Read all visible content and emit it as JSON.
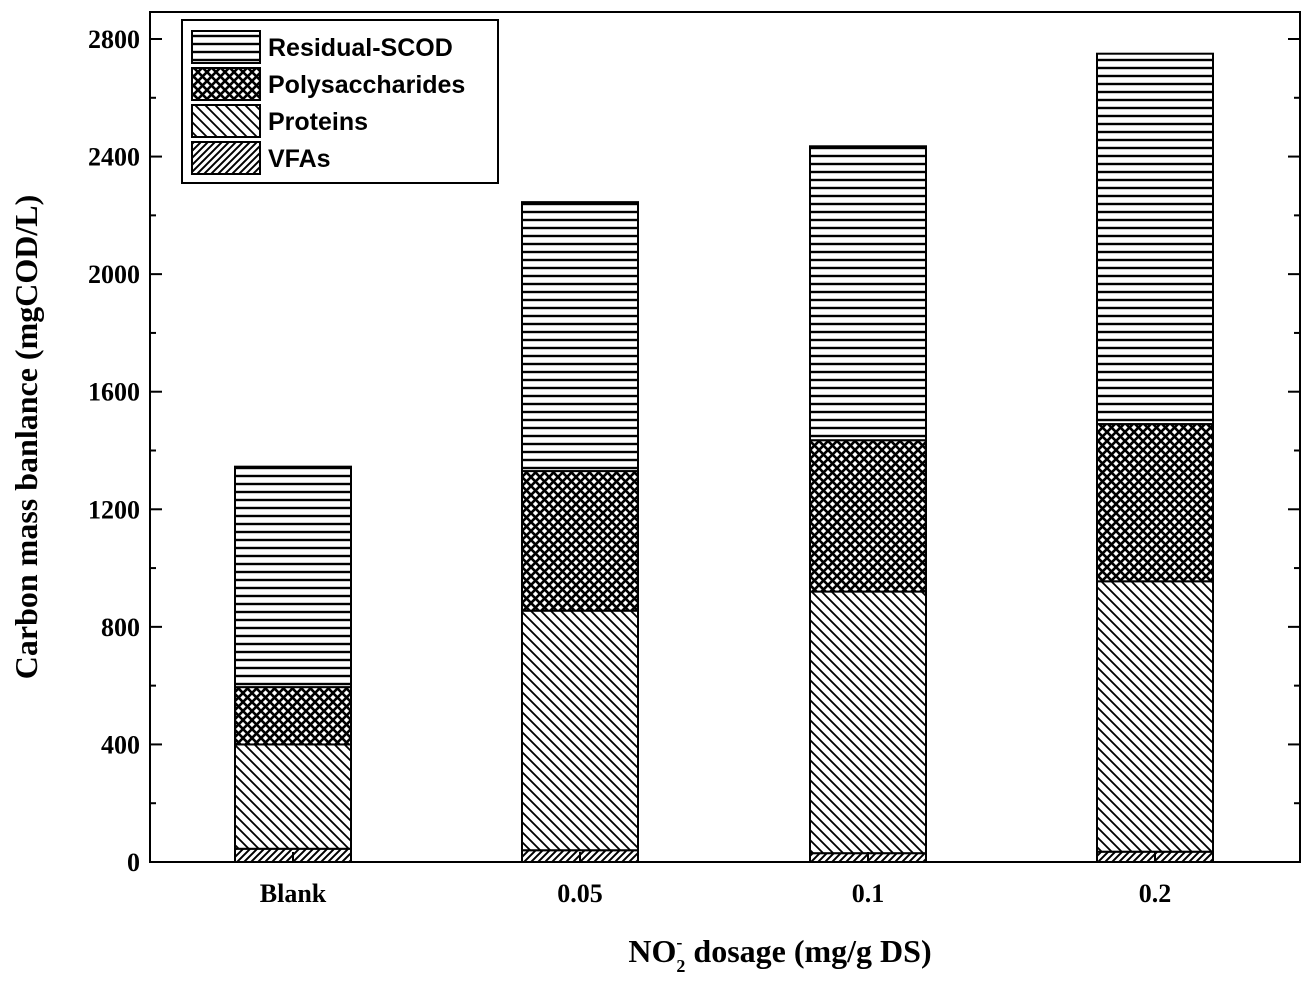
{
  "chart_data": {
    "type": "bar",
    "stacked": true,
    "categories": [
      "Blank",
      "0.05",
      "0.1",
      "0.2"
    ],
    "series": [
      {
        "name": "VFAs",
        "values": [
          45,
          40,
          30,
          35
        ],
        "pattern": "diag-dense"
      },
      {
        "name": "Proteins",
        "values": [
          355,
          815,
          890,
          920
        ],
        "pattern": "diag-back"
      },
      {
        "name": "Polysaccharides",
        "values": [
          195,
          475,
          515,
          535
        ],
        "pattern": "crosshatch"
      },
      {
        "name": "Residual-SCOD",
        "values": [
          750,
          915,
          1000,
          1260
        ],
        "pattern": "horizontal"
      }
    ],
    "legend_order": [
      "Residual-SCOD",
      "Polysaccharides",
      "Proteins",
      "VFAs"
    ],
    "legend_position": "top-left",
    "xlabel_parts": {
      "main": "NO",
      "sup": "-",
      "sub": "2",
      "rest": " dosage (mg/g DS)"
    },
    "ylabel": "Carbon mass banlance (mgCOD/L)",
    "ylim": [
      0,
      2800
    ],
    "yticks": [
      0,
      400,
      800,
      1200,
      1600,
      2000,
      2400,
      2800
    ],
    "grid": false
  }
}
